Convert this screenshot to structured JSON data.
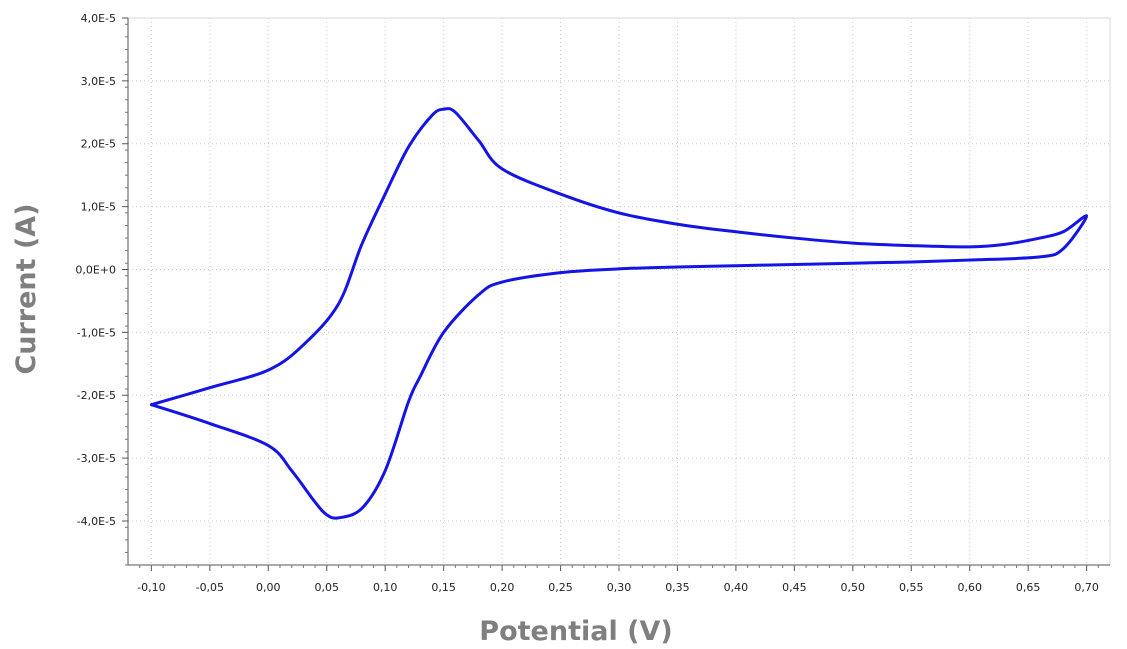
{
  "chart_data": {
    "type": "line",
    "xlabel": "Potential (V)",
    "ylabel": "Current (A)",
    "xlim": [
      -0.12,
      0.72
    ],
    "ylim": [
      -4.7e-05,
      4e-05
    ],
    "x_ticks": [
      -0.1,
      -0.05,
      0.0,
      0.05,
      0.1,
      0.15,
      0.2,
      0.25,
      0.3,
      0.35,
      0.4,
      0.45,
      0.5,
      0.55,
      0.6,
      0.65,
      0.7
    ],
    "x_tick_labels": [
      "-0,10",
      "-0,05",
      "0,00",
      "0,05",
      "0,10",
      "0,15",
      "0,20",
      "0,25",
      "0,30",
      "0,35",
      "0,40",
      "0,45",
      "0,50",
      "0,55",
      "0,60",
      "0,65",
      "0,70"
    ],
    "y_ticks": [
      4e-05,
      3e-05,
      2e-05,
      1e-05,
      0.0,
      -1e-05,
      -2e-05,
      -3e-05,
      -4e-05
    ],
    "y_tick_labels": [
      "4,0E-5",
      "3,0E-5",
      "2,0E-5",
      "1,0E-5",
      "0,0E+0",
      "-1,0E-5",
      "-2,0E-5",
      "-3,0E-5",
      "-4,0E-5"
    ],
    "grid": true,
    "legend": false,
    "series": [
      {
        "color": "#1414e6",
        "x": [
          -0.1,
          -0.05,
          0.0,
          0.03,
          0.06,
          0.08,
          0.1,
          0.12,
          0.14,
          0.15,
          0.16,
          0.18,
          0.2,
          0.25,
          0.3,
          0.35,
          0.4,
          0.45,
          0.5,
          0.55,
          0.6,
          0.63,
          0.66,
          0.68,
          0.7,
          0.68,
          0.66,
          0.6,
          0.55,
          0.5,
          0.45,
          0.4,
          0.35,
          0.3,
          0.25,
          0.2,
          0.18,
          0.15,
          0.13,
          0.12,
          0.1,
          0.08,
          0.06,
          0.05,
          0.04,
          0.02,
          0.0,
          -0.05,
          -0.1
        ],
        "y": [
          -2.15e-05,
          -1.88e-05,
          -1.6e-05,
          -1.2e-05,
          -5.5e-06,
          4e-06,
          1.2e-05,
          1.95e-05,
          2.45e-05,
          2.55e-05,
          2.5e-05,
          2.05e-05,
          1.6e-05,
          1.2e-05,
          9e-06,
          7.2e-06,
          6e-06,
          5e-06,
          4.2e-06,
          3.8e-06,
          3.6e-06,
          4e-06,
          5e-06,
          6e-06,
          8.5e-06,
          3.3e-06,
          2e-06,
          1.5e-06,
          1.2e-06,
          1e-06,
          8e-07,
          6e-07,
          4e-07,
          1e-07,
          -5e-07,
          -2e-06,
          -4e-06,
          -1e-05,
          -1.7e-05,
          -2.1e-05,
          -3.2e-05,
          -3.8e-05,
          -3.95e-05,
          -3.9e-05,
          -3.7e-05,
          -3.2e-05,
          -2.8e-05,
          -2.45e-05,
          -2.15e-05
        ]
      }
    ]
  }
}
